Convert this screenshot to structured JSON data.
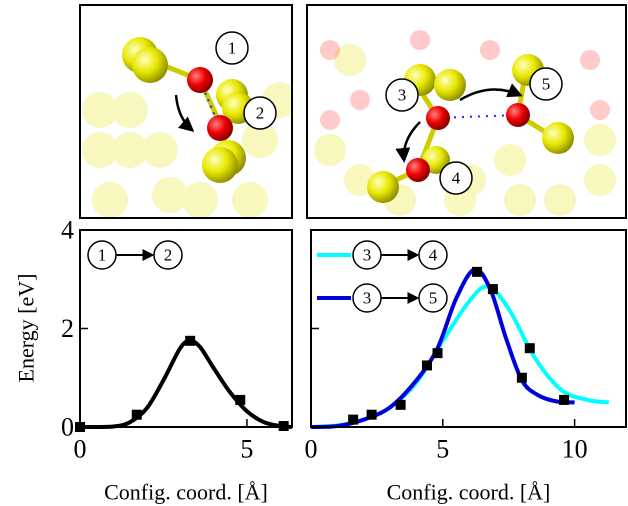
{
  "structures": [
    {
      "labels": [
        "1",
        "2"
      ]
    },
    {
      "labels": [
        "3",
        "4",
        "5"
      ]
    }
  ],
  "y_label": "Energy [eV]",
  "chart_data": [
    {
      "type": "line",
      "xlabel": "Config. coord. [Å]",
      "xlim": [
        0,
        6.35
      ],
      "ylim": [
        0,
        4
      ],
      "xticks": [
        0,
        5
      ],
      "yticks": [
        0,
        2,
        4
      ],
      "show_ytick_labels": true,
      "series": [
        {
          "legend": [
            "1",
            "2"
          ],
          "color": "#000000",
          "x": [
            0,
            1,
            1.5,
            2,
            2.5,
            3,
            3.3,
            3.6,
            4,
            4.5,
            5,
            5.5,
            6,
            6.35
          ],
          "values": [
            0,
            0.01,
            0.1,
            0.38,
            0.95,
            1.6,
            1.75,
            1.62,
            1.2,
            0.7,
            0.32,
            0.1,
            0.02,
            0
          ]
        }
      ],
      "points": {
        "color": "#000000",
        "x": [
          0,
          1.7,
          3.3,
          4.8,
          6.1
        ],
        "values": [
          0,
          0.25,
          1.75,
          0.55,
          0.02
        ]
      }
    },
    {
      "type": "line",
      "xlabel": "Config. coord. [Å]",
      "xlim": [
        0,
        11.95
      ],
      "ylim": [
        0,
        4
      ],
      "xticks": [
        0,
        5,
        10
      ],
      "yticks": [
        0,
        2,
        4
      ],
      "show_ytick_labels": false,
      "series": [
        {
          "legend": [
            "3",
            "4"
          ],
          "color": "#00ffff",
          "x": [
            0,
            1,
            2,
            3,
            4,
            5,
            6,
            6.7,
            7.5,
            8.5,
            9.5,
            10.5,
            11.3
          ],
          "values": [
            0,
            0.03,
            0.15,
            0.4,
            0.9,
            1.75,
            2.55,
            2.85,
            2.4,
            1.4,
            0.75,
            0.55,
            0.5
          ]
        },
        {
          "legend": [
            "3",
            "5"
          ],
          "color": "#0000dd",
          "x": [
            0,
            1,
            2,
            3,
            4,
            4.8,
            5.5,
            6.2,
            6.8,
            7.4,
            8,
            8.6,
            9.3,
            10
          ],
          "values": [
            0,
            0.02,
            0.15,
            0.4,
            0.95,
            1.6,
            2.6,
            3.2,
            2.8,
            1.8,
            0.95,
            0.65,
            0.52,
            0.5
          ]
        }
      ],
      "points": {
        "color": "#000000",
        "x": [
          1.6,
          2.3,
          3.4,
          4.4,
          4.8,
          6.3,
          6.9,
          8.0,
          8.3,
          9.6
        ],
        "values": [
          0.15,
          0.25,
          0.45,
          1.25,
          1.5,
          3.15,
          2.8,
          1.0,
          1.6,
          0.55
        ]
      }
    }
  ]
}
